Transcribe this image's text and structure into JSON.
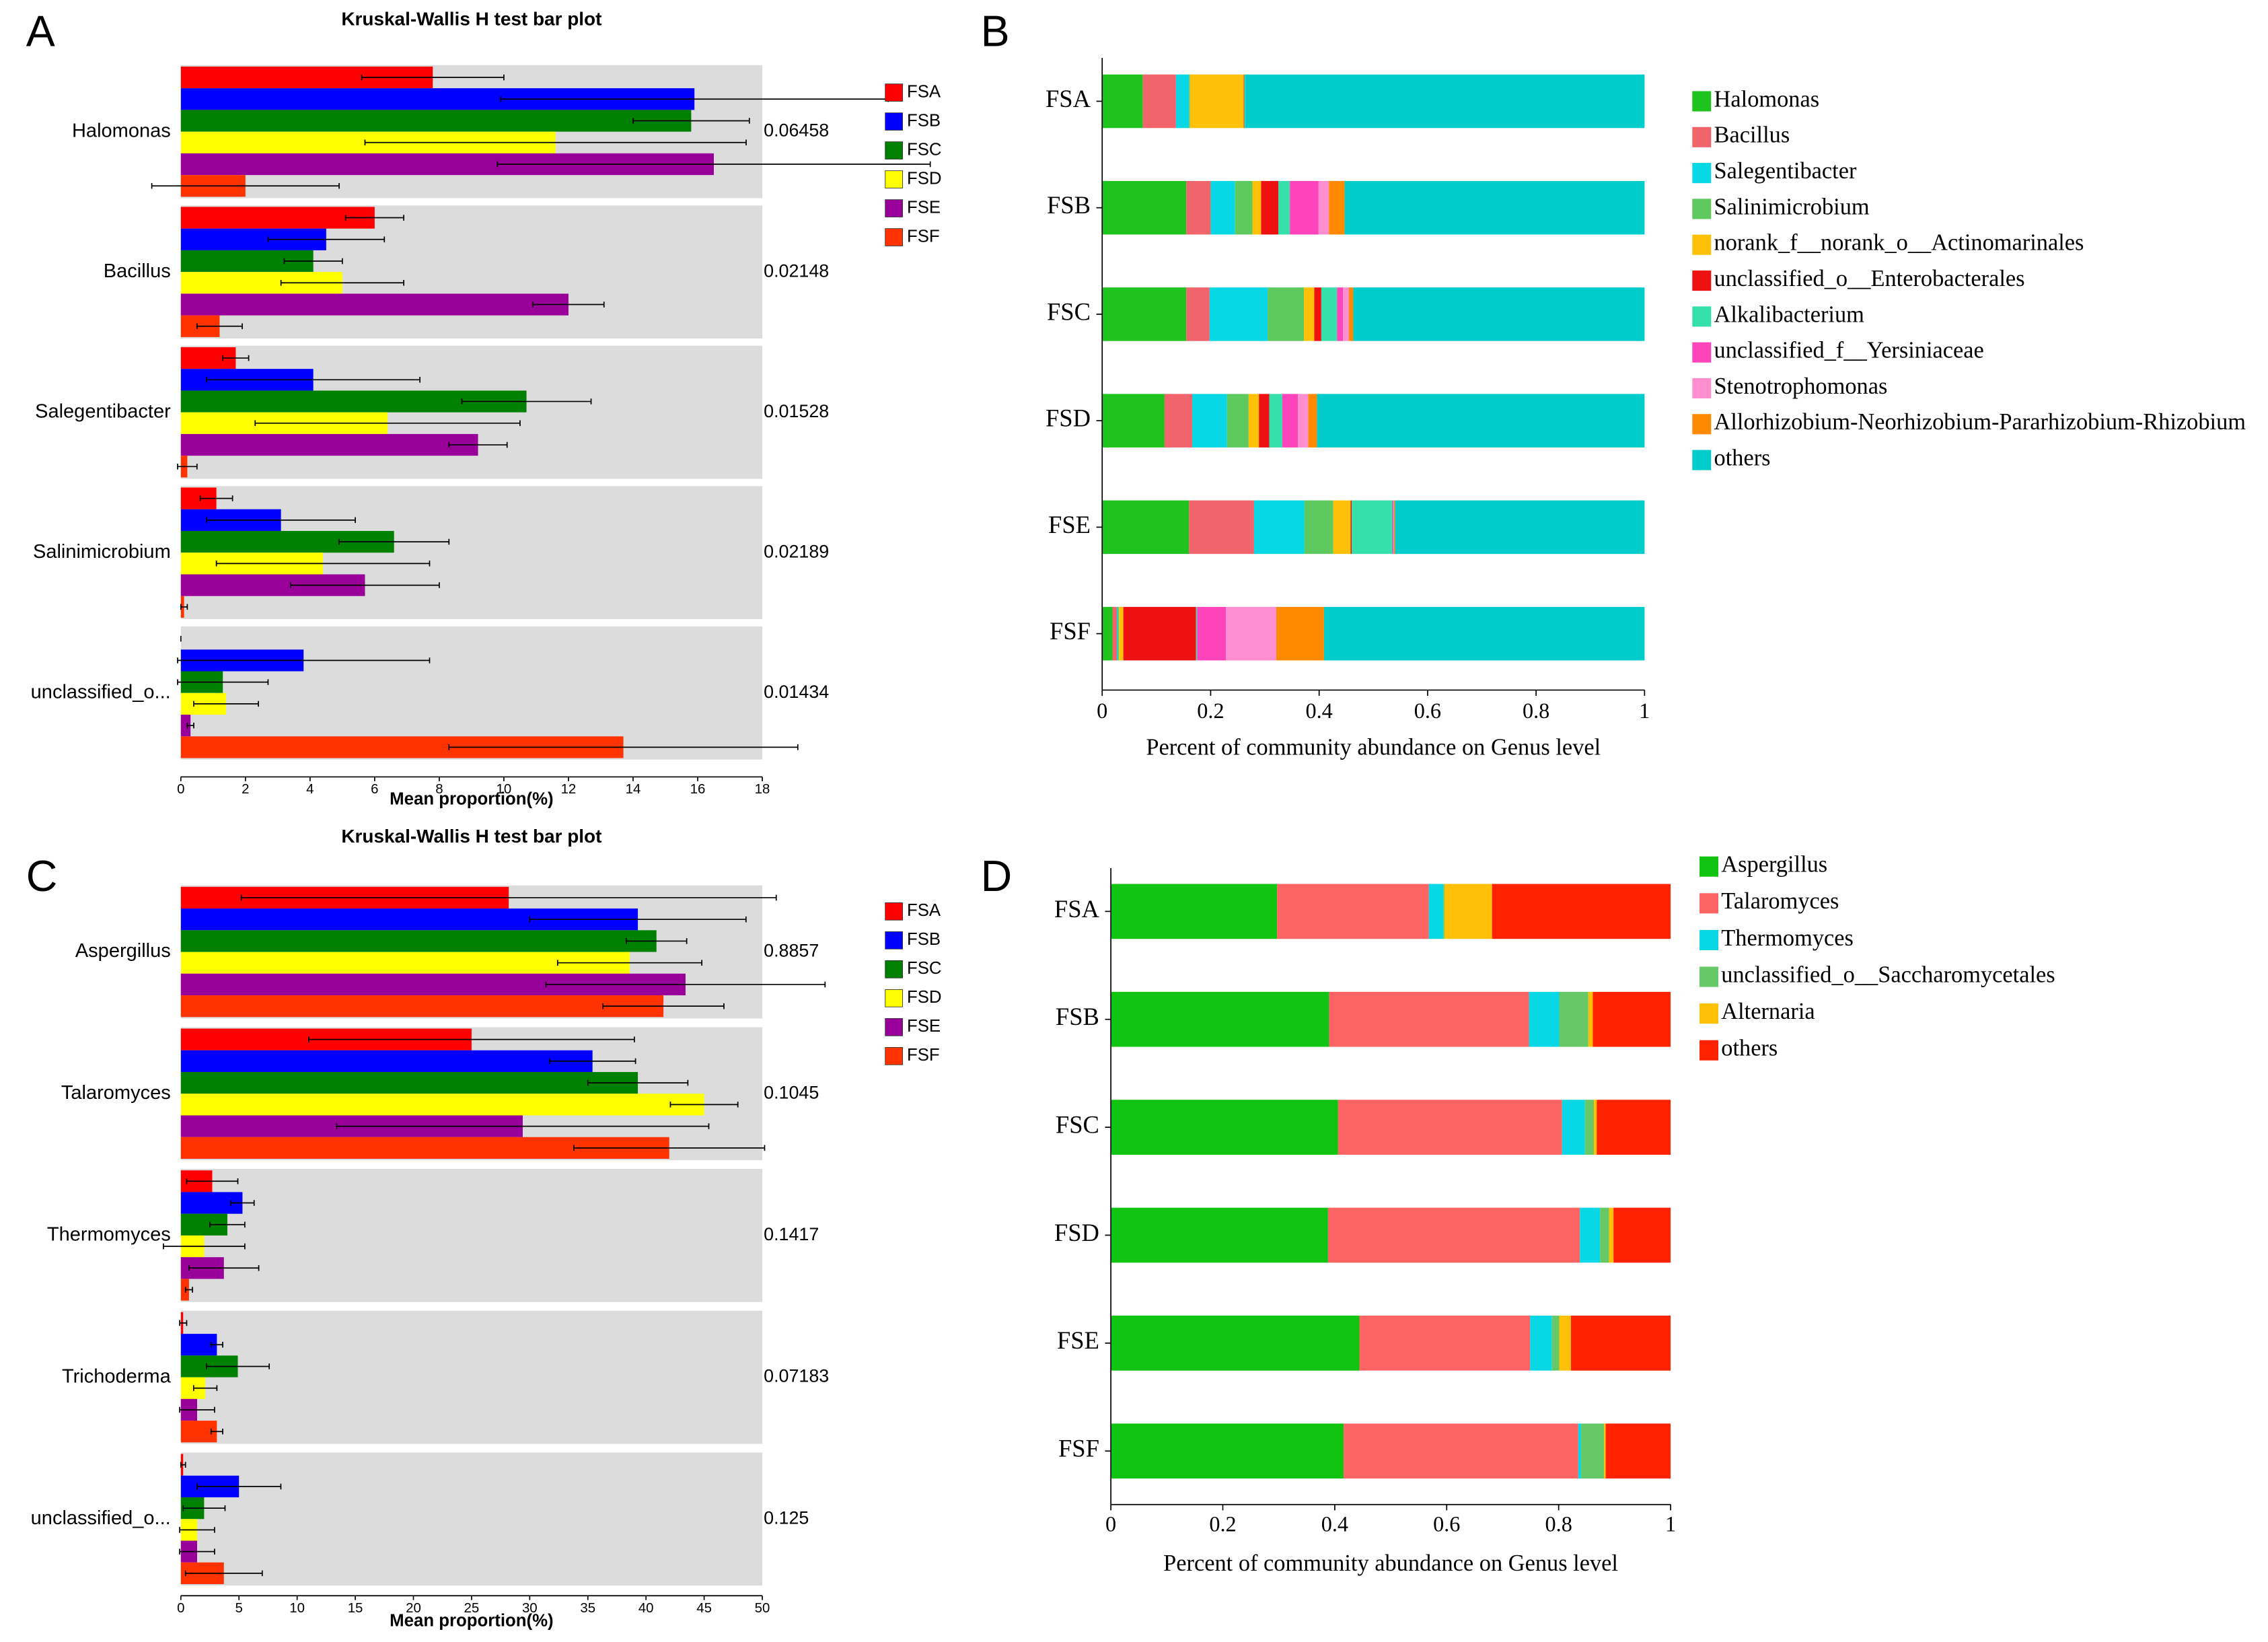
{
  "chart_data": [
    {
      "type": "bar",
      "orientation": "horizontal",
      "panel_label": "A",
      "title": "Kruskal-Wallis H test bar plot",
      "x_label": "Mean proportion(%)",
      "categories": [
        "Halomonas",
        "Bacillus",
        "Salegentibacter",
        "Salinimicrobium",
        "unclassified_o..."
      ],
      "series": [
        {
          "name": "FSA",
          "color": "#ff0000",
          "values": [
            7.8,
            6.0,
            1.7,
            1.1,
            0
          ],
          "errors": [
            2.2,
            0.9,
            0.4,
            0.5,
            0
          ]
        },
        {
          "name": "FSB",
          "color": "#0000ff",
          "values": [
            15.9,
            4.5,
            4.1,
            3.1,
            3.8
          ],
          "errors": [
            6.0,
            1.8,
            3.3,
            2.3,
            3.9
          ]
        },
        {
          "name": "FSC",
          "color": "#008000",
          "values": [
            15.8,
            4.1,
            10.7,
            6.6,
            1.3
          ],
          "errors": [
            1.8,
            0.9,
            2.0,
            1.7,
            1.4
          ]
        },
        {
          "name": "FSD",
          "color": "#ffff00",
          "values": [
            11.6,
            5.0,
            6.4,
            4.4,
            1.4
          ],
          "errors": [
            5.9,
            1.9,
            4.1,
            3.3,
            1.0
          ]
        },
        {
          "name": "FSE",
          "color": "#990099",
          "values": [
            16.5,
            12.0,
            9.2,
            5.7,
            0.3
          ],
          "errors": [
            6.7,
            1.1,
            0.9,
            2.3,
            0.1
          ]
        },
        {
          "name": "FSF",
          "color": "#ff3300",
          "values": [
            2.0,
            1.2,
            0.2,
            0.1,
            13.7
          ],
          "errors": [
            2.9,
            0.7,
            0.3,
            0.1,
            5.4
          ]
        }
      ],
      "p_values": [
        0.06458,
        0.02148,
        0.01528,
        0.02189,
        0.01434
      ],
      "xlim": [
        0,
        18
      ],
      "xticks": [
        0,
        2,
        4,
        6,
        8,
        10,
        12,
        14,
        16,
        18
      ],
      "background": "#dcdcdc"
    },
    {
      "type": "stacked_bar",
      "orientation": "horizontal",
      "panel_label": "B",
      "x_label": "Percent of community abundance on Genus level",
      "categories": [
        "FSA",
        "FSB",
        "FSC",
        "FSD",
        "FSE",
        "FSF"
      ],
      "series": [
        {
          "name": "Halomonas",
          "color": "#1ec31e",
          "values": [
            0.075,
            0.155,
            0.155,
            0.115,
            0.16,
            0.019
          ]
        },
        {
          "name": "Bacillus",
          "color": "#f2646c",
          "values": [
            0.061,
            0.045,
            0.043,
            0.051,
            0.12,
            0.008
          ]
        },
        {
          "name": "Salegentibacter",
          "color": "#08d8e6",
          "values": [
            0.024,
            0.045,
            0.107,
            0.064,
            0.093,
            0.002
          ]
        },
        {
          "name": "Salinimicrobium",
          "color": "#5ec95e",
          "values": [
            0.002,
            0.032,
            0.067,
            0.04,
            0.053,
            0.002
          ]
        },
        {
          "name": "norank_f__norank_o__Actinomarinales",
          "color": "#ffc107",
          "values": [
            0.099,
            0.016,
            0.019,
            0.019,
            0.032,
            0.008
          ]
        },
        {
          "name": "unclassified_o__Enterobacterales",
          "color": "#ee1111",
          "values": [
            0.001,
            0.032,
            0.013,
            0.019,
            0.002,
            0.134
          ]
        },
        {
          "name": "Alkalibacterium",
          "color": "#36e0aa",
          "values": [
            0.002,
            0.021,
            0.029,
            0.024,
            0.075,
            0.002
          ]
        },
        {
          "name": "unclassified_f__Yersiniaceae",
          "color": "#ff44bb",
          "values": [
            0,
            0.053,
            0.011,
            0.029,
            0.002,
            0.053
          ]
        },
        {
          "name": "Stenotrophomonas",
          "color": "#ff8ed0",
          "values": [
            0,
            0.019,
            0.011,
            0.019,
            0.001,
            0.093
          ]
        },
        {
          "name": "Allorhizobium-Neorhizobium-Pararhizobium-Rhizobium",
          "color": "#ff8a00",
          "values": [
            0,
            0.029,
            0.008,
            0.016,
            0.002,
            0.088
          ]
        },
        {
          "name": "others",
          "color": "#00cccc",
          "values": [
            0.736,
            0.553,
            0.537,
            0.604,
            0.46,
            0.591
          ]
        }
      ],
      "xlim": [
        0,
        1
      ],
      "xticks": [
        0,
        0.2,
        0.4,
        0.6,
        0.8,
        1
      ]
    },
    {
      "type": "bar",
      "orientation": "horizontal",
      "panel_label": "C",
      "title": "Kruskal-Wallis H test bar plot",
      "x_label": "Mean proportion(%)",
      "categories": [
        "Aspergillus",
        "Talaromyces",
        "Thermomyces",
        "Trichoderma",
        "unclassified_o..."
      ],
      "series": [
        {
          "name": "FSA",
          "color": "#ff0000",
          "values": [
            28.2,
            25.0,
            2.7,
            0.2,
            0.2
          ],
          "errors": [
            23,
            14,
            2.2,
            0.3,
            0.2
          ]
        },
        {
          "name": "FSB",
          "color": "#0000ff",
          "values": [
            39.3,
            35.4,
            5.3,
            3.1,
            5.0
          ],
          "errors": [
            9.3,
            3.7,
            1.0,
            0.5,
            3.6
          ]
        },
        {
          "name": "FSC",
          "color": "#008000",
          "values": [
            40.9,
            39.3,
            4.0,
            4.9,
            2.0
          ],
          "errors": [
            2.6,
            4.3,
            1.5,
            2.7,
            1.8
          ]
        },
        {
          "name": "FSD",
          "color": "#ffff00",
          "values": [
            38.6,
            45.0,
            2.0,
            2.1,
            1.4
          ],
          "errors": [
            6.2,
            2.9,
            3.5,
            1.0,
            1.5
          ]
        },
        {
          "name": "FSE",
          "color": "#990099",
          "values": [
            43.4,
            29.4,
            3.7,
            1.4,
            1.4
          ],
          "errors": [
            12,
            16,
            3,
            1.5,
            1.5
          ]
        },
        {
          "name": "FSF",
          "color": "#ff3300",
          "values": [
            41.5,
            42.0,
            0.7,
            3.1,
            3.7
          ],
          "errors": [
            5.2,
            8.2,
            0.3,
            0.5,
            3.3
          ]
        }
      ],
      "p_values": [
        0.8857,
        0.1045,
        0.1417,
        0.07183,
        0.125
      ],
      "xlim": [
        0,
        50
      ],
      "xticks": [
        0,
        5,
        10,
        15,
        20,
        25,
        30,
        35,
        40,
        45,
        50
      ],
      "background": "#dcdcdc"
    },
    {
      "type": "stacked_bar",
      "orientation": "horizontal",
      "panel_label": "D",
      "x_label": "Percent of community abundance on Genus level",
      "categories": [
        "FSA",
        "FSB",
        "FSC",
        "FSD",
        "FSE",
        "FSF"
      ],
      "series": [
        {
          "name": "Aspergillus",
          "color": "#12c412",
          "values": [
            0.297,
            0.39,
            0.406,
            0.388,
            0.444,
            0.416
          ]
        },
        {
          "name": "Talaromyces",
          "color": "#ff6464",
          "values": [
            0.271,
            0.357,
            0.4,
            0.45,
            0.305,
            0.419
          ]
        },
        {
          "name": "Thermomyces",
          "color": "#08d8e6",
          "values": [
            0.026,
            0.054,
            0.041,
            0.036,
            0.039,
            0.005
          ]
        },
        {
          "name": "unclassified_o__Saccharomycetales",
          "color": "#66c866",
          "values": [
            0.002,
            0.052,
            0.016,
            0.016,
            0.013,
            0.041
          ]
        },
        {
          "name": "Alternaria",
          "color": "#ffc107",
          "values": [
            0.085,
            0.008,
            0.005,
            0.008,
            0.021,
            0.003
          ]
        },
        {
          "name": "others",
          "color": "#ff2200",
          "values": [
            0.319,
            0.139,
            0.132,
            0.102,
            0.178,
            0.116
          ]
        }
      ],
      "xlim": [
        0,
        1
      ],
      "xticks": [
        0,
        0.2,
        0.4,
        0.6,
        0.8,
        1
      ]
    }
  ]
}
